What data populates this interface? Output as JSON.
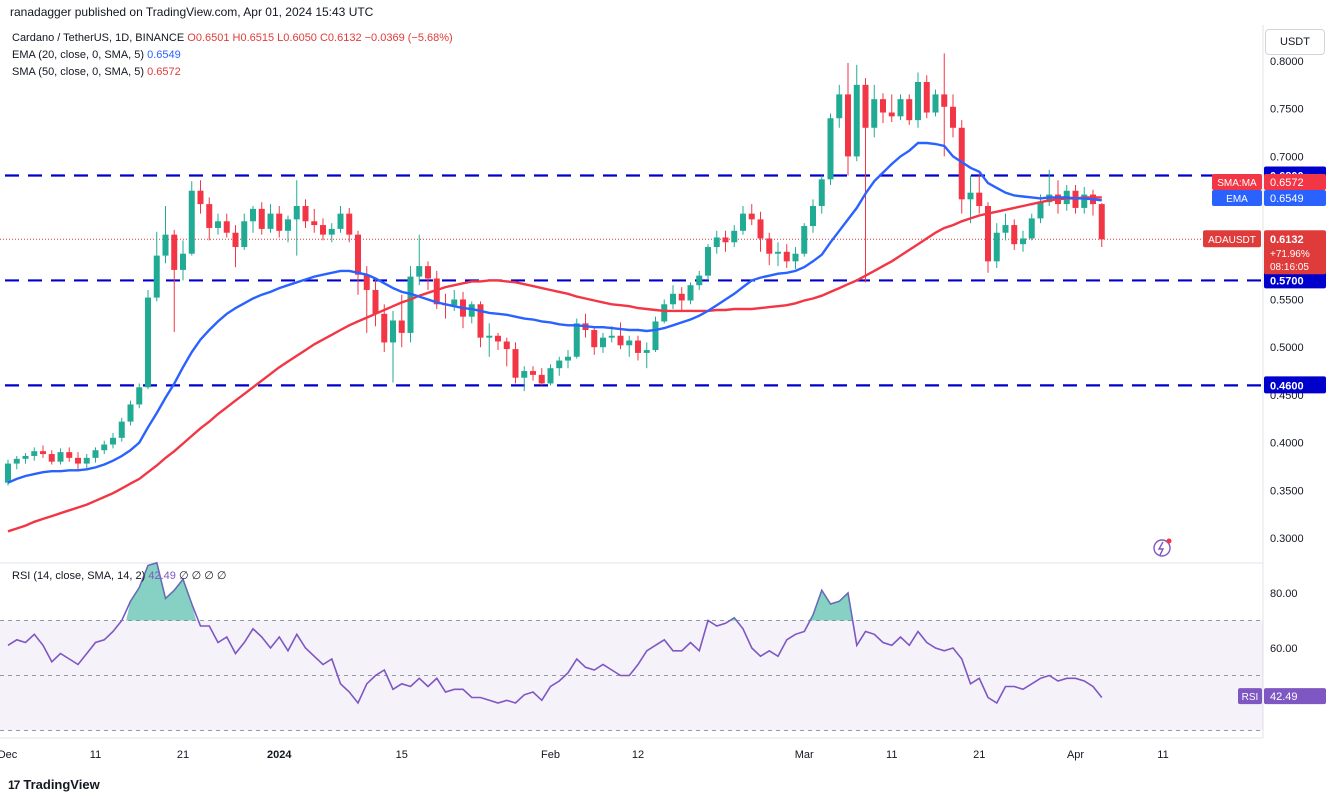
{
  "publisher": "ranadagger published on TradingView.com, Apr 01, 2024 15:43 UTC",
  "symbol_line": {
    "name": "Cardano / TetherUS, 1D, BINANCE",
    "ohlc": "O0.6501 H0.6515 L0.6050 C0.6132 −0.0369 (−5.68%)"
  },
  "ema_line": {
    "label": "EMA (20, close, 0, SMA, 5)",
    "value": "0.6549"
  },
  "sma_line": {
    "label": "SMA (50, close, 0, SMA, 5)",
    "value": "0.6572"
  },
  "currency": "USDT",
  "brand": {
    "mark": "17",
    "name": "TradingView"
  },
  "colors": {
    "up": "#22ab94",
    "down": "#f23645",
    "ema": "#2962ff",
    "sma": "#f23645",
    "level": "#0000cc",
    "rsi": "#7e57c2",
    "price_line": "#e03b3b"
  },
  "chart_data": [
    {
      "type": "candlestick",
      "title": "Cardano / TetherUS, 1D, BINANCE",
      "y_axis_ticks": [
        "0.8000",
        "0.7500",
        "0.7000",
        "0.5500",
        "0.5000",
        "0.4500",
        "0.4000",
        "0.3500",
        "0.3000"
      ],
      "ylim": [
        0.28,
        0.81
      ],
      "x_axis_ticks": [
        {
          "label": "Dec",
          "day": 0
        },
        {
          "label": "11",
          "day": 10
        },
        {
          "label": "21",
          "day": 20
        },
        {
          "label": "2024",
          "day": 31
        },
        {
          "label": "15",
          "day": 45
        },
        {
          "label": "Feb",
          "day": 62
        },
        {
          "label": "12",
          "day": 72
        },
        {
          "label": "Mar",
          "day": 91
        },
        {
          "label": "11",
          "day": 101
        },
        {
          "label": "21",
          "day": 111
        },
        {
          "label": "Apr",
          "day": 122
        },
        {
          "label": "11",
          "day": 132
        }
      ],
      "first_candle_date": "2023-11-22",
      "ohlc": [
        [
          0.358,
          0.382,
          0.355,
          0.378
        ],
        [
          0.378,
          0.386,
          0.372,
          0.383
        ],
        [
          0.383,
          0.389,
          0.378,
          0.386
        ],
        [
          0.386,
          0.395,
          0.381,
          0.391
        ],
        [
          0.391,
          0.397,
          0.384,
          0.388
        ],
        [
          0.388,
          0.392,
          0.377,
          0.38
        ],
        [
          0.38,
          0.394,
          0.377,
          0.39
        ],
        [
          0.39,
          0.395,
          0.38,
          0.384
        ],
        [
          0.384,
          0.39,
          0.372,
          0.378
        ],
        [
          0.378,
          0.388,
          0.373,
          0.384
        ],
        [
          0.384,
          0.395,
          0.379,
          0.392
        ],
        [
          0.392,
          0.402,
          0.388,
          0.398
        ],
        [
          0.398,
          0.41,
          0.394,
          0.405
        ],
        [
          0.405,
          0.426,
          0.401,
          0.422
        ],
        [
          0.422,
          0.444,
          0.418,
          0.44
        ],
        [
          0.44,
          0.462,
          0.436,
          0.458
        ],
        [
          0.458,
          0.56,
          0.456,
          0.552
        ],
        [
          0.552,
          0.621,
          0.548,
          0.596
        ],
        [
          0.596,
          0.648,
          0.588,
          0.618
        ],
        [
          0.618,
          0.623,
          0.516,
          0.581
        ],
        [
          0.581,
          0.612,
          0.57,
          0.598
        ],
        [
          0.598,
          0.674,
          0.596,
          0.664
        ],
        [
          0.664,
          0.675,
          0.64,
          0.65
        ],
        [
          0.65,
          0.657,
          0.612,
          0.625
        ],
        [
          0.625,
          0.64,
          0.618,
          0.632
        ],
        [
          0.632,
          0.64,
          0.615,
          0.62
        ],
        [
          0.62,
          0.628,
          0.584,
          0.605
        ],
        [
          0.605,
          0.64,
          0.602,
          0.632
        ],
        [
          0.632,
          0.648,
          0.62,
          0.645
        ],
        [
          0.645,
          0.652,
          0.618,
          0.624
        ],
        [
          0.624,
          0.65,
          0.62,
          0.64
        ],
        [
          0.64,
          0.648,
          0.615,
          0.622
        ],
        [
          0.622,
          0.638,
          0.61,
          0.634
        ],
        [
          0.634,
          0.675,
          0.596,
          0.648
        ],
        [
          0.648,
          0.655,
          0.625,
          0.632
        ],
        [
          0.632,
          0.645,
          0.62,
          0.628
        ],
        [
          0.628,
          0.635,
          0.612,
          0.618
        ],
        [
          0.618,
          0.63,
          0.61,
          0.624
        ],
        [
          0.624,
          0.648,
          0.62,
          0.64
        ],
        [
          0.64,
          0.646,
          0.61,
          0.618
        ],
        [
          0.618,
          0.622,
          0.555,
          0.576
        ],
        [
          0.576,
          0.585,
          0.515,
          0.56
        ],
        [
          0.56,
          0.572,
          0.522,
          0.535
        ],
        [
          0.535,
          0.545,
          0.495,
          0.505
        ],
        [
          0.505,
          0.538,
          0.463,
          0.528
        ],
        [
          0.528,
          0.555,
          0.5,
          0.515
        ],
        [
          0.515,
          0.585,
          0.505,
          0.574
        ],
        [
          0.574,
          0.618,
          0.565,
          0.585
        ],
        [
          0.585,
          0.59,
          0.56,
          0.572
        ],
        [
          0.572,
          0.58,
          0.54,
          0.545
        ],
        [
          0.545,
          0.556,
          0.53,
          0.544
        ],
        [
          0.544,
          0.56,
          0.538,
          0.55
        ],
        [
          0.55,
          0.558,
          0.52,
          0.532
        ],
        [
          0.532,
          0.548,
          0.525,
          0.545
        ],
        [
          0.545,
          0.548,
          0.5,
          0.51
        ],
        [
          0.51,
          0.525,
          0.49,
          0.512
        ],
        [
          0.512,
          0.515,
          0.497,
          0.506
        ],
        [
          0.506,
          0.51,
          0.48,
          0.498
        ],
        [
          0.498,
          0.505,
          0.462,
          0.468
        ],
        [
          0.468,
          0.48,
          0.454,
          0.475
        ],
        [
          0.475,
          0.48,
          0.465,
          0.471
        ],
        [
          0.471,
          0.478,
          0.46,
          0.462
        ],
        [
          0.462,
          0.482,
          0.46,
          0.478
        ],
        [
          0.478,
          0.49,
          0.47,
          0.486
        ],
        [
          0.486,
          0.497,
          0.478,
          0.49
        ],
        [
          0.49,
          0.53,
          0.488,
          0.525
        ],
        [
          0.525,
          0.535,
          0.51,
          0.518
        ],
        [
          0.518,
          0.522,
          0.492,
          0.5
        ],
        [
          0.5,
          0.515,
          0.494,
          0.51
        ],
        [
          0.51,
          0.522,
          0.505,
          0.512
        ],
        [
          0.512,
          0.526,
          0.498,
          0.502
        ],
        [
          0.502,
          0.512,
          0.49,
          0.507
        ],
        [
          0.507,
          0.512,
          0.486,
          0.494
        ],
        [
          0.494,
          0.505,
          0.478,
          0.497
        ],
        [
          0.497,
          0.532,
          0.495,
          0.527
        ],
        [
          0.527,
          0.55,
          0.525,
          0.545
        ],
        [
          0.545,
          0.565,
          0.54,
          0.556
        ],
        [
          0.556,
          0.563,
          0.538,
          0.549
        ],
        [
          0.549,
          0.568,
          0.545,
          0.565
        ],
        [
          0.565,
          0.58,
          0.56,
          0.575
        ],
        [
          0.575,
          0.608,
          0.57,
          0.605
        ],
        [
          0.605,
          0.622,
          0.598,
          0.615
        ],
        [
          0.615,
          0.622,
          0.6,
          0.61
        ],
        [
          0.61,
          0.628,
          0.605,
          0.622
        ],
        [
          0.622,
          0.648,
          0.618,
          0.64
        ],
        [
          0.64,
          0.65,
          0.628,
          0.634
        ],
        [
          0.634,
          0.642,
          0.6,
          0.614
        ],
        [
          0.614,
          0.62,
          0.586,
          0.598
        ],
        [
          0.598,
          0.61,
          0.585,
          0.6
        ],
        [
          0.6,
          0.608,
          0.583,
          0.59
        ],
        [
          0.59,
          0.605,
          0.582,
          0.598
        ],
        [
          0.598,
          0.63,
          0.595,
          0.627
        ],
        [
          0.627,
          0.655,
          0.62,
          0.648
        ],
        [
          0.648,
          0.68,
          0.64,
          0.676
        ],
        [
          0.676,
          0.745,
          0.67,
          0.74
        ],
        [
          0.74,
          0.775,
          0.73,
          0.765
        ],
        [
          0.765,
          0.798,
          0.68,
          0.7
        ],
        [
          0.7,
          0.796,
          0.695,
          0.775
        ],
        [
          0.775,
          0.782,
          0.568,
          0.73
        ],
        [
          0.73,
          0.775,
          0.72,
          0.76
        ],
        [
          0.76,
          0.766,
          0.735,
          0.746
        ],
        [
          0.746,
          0.765,
          0.736,
          0.742
        ],
        [
          0.742,
          0.765,
          0.738,
          0.76
        ],
        [
          0.76,
          0.765,
          0.733,
          0.738
        ],
        [
          0.738,
          0.788,
          0.73,
          0.778
        ],
        [
          0.778,
          0.785,
          0.74,
          0.746
        ],
        [
          0.746,
          0.77,
          0.742,
          0.765
        ],
        [
          0.765,
          0.808,
          0.7,
          0.752
        ],
        [
          0.752,
          0.765,
          0.72,
          0.73
        ],
        [
          0.73,
          0.738,
          0.64,
          0.655
        ],
        [
          0.655,
          0.68,
          0.63,
          0.662
        ],
        [
          0.662,
          0.682,
          0.64,
          0.648
        ],
        [
          0.648,
          0.652,
          0.578,
          0.59
        ],
        [
          0.59,
          0.63,
          0.583,
          0.62
        ],
        [
          0.62,
          0.64,
          0.612,
          0.628
        ],
        [
          0.628,
          0.634,
          0.602,
          0.608
        ],
        [
          0.608,
          0.622,
          0.6,
          0.614
        ],
        [
          0.614,
          0.64,
          0.612,
          0.635
        ],
        [
          0.635,
          0.66,
          0.63,
          0.652
        ],
        [
          0.652,
          0.686,
          0.648,
          0.66
        ],
        [
          0.66,
          0.675,
          0.64,
          0.65
        ],
        [
          0.65,
          0.67,
          0.643,
          0.664
        ],
        [
          0.664,
          0.67,
          0.64,
          0.646
        ],
        [
          0.646,
          0.668,
          0.64,
          0.66
        ],
        [
          0.66,
          0.665,
          0.638,
          0.65
        ],
        [
          0.65,
          0.651,
          0.605,
          0.613
        ]
      ],
      "ema20": [
        0.358,
        0.362,
        0.365,
        0.367,
        0.369,
        0.37,
        0.37,
        0.371,
        0.371,
        0.372,
        0.374,
        0.377,
        0.381,
        0.386,
        0.392,
        0.4,
        0.416,
        0.431,
        0.447,
        0.462,
        0.479,
        0.495,
        0.508,
        0.518,
        0.527,
        0.535,
        0.541,
        0.546,
        0.551,
        0.555,
        0.558,
        0.562,
        0.565,
        0.568,
        0.571,
        0.574,
        0.576,
        0.578,
        0.58,
        0.58,
        0.578,
        0.576,
        0.572,
        0.567,
        0.562,
        0.558,
        0.556,
        0.553,
        0.55,
        0.547,
        0.545,
        0.543,
        0.541,
        0.54,
        0.538,
        0.536,
        0.535,
        0.534,
        0.532,
        0.53,
        0.529,
        0.527,
        0.526,
        0.524,
        0.523,
        0.523,
        0.522,
        0.521,
        0.521,
        0.52,
        0.519,
        0.518,
        0.518,
        0.517,
        0.518,
        0.52,
        0.523,
        0.526,
        0.529,
        0.533,
        0.538,
        0.544,
        0.55,
        0.556,
        0.563,
        0.57,
        0.573,
        0.575,
        0.577,
        0.578,
        0.58,
        0.584,
        0.59,
        0.597,
        0.61,
        0.622,
        0.634,
        0.646,
        0.661,
        0.674,
        0.683,
        0.692,
        0.7,
        0.706,
        0.714,
        0.714,
        0.713,
        0.711,
        0.7,
        0.694,
        0.688,
        0.684,
        0.672,
        0.667,
        0.662,
        0.659,
        0.658,
        0.657,
        0.656,
        0.657,
        0.657,
        0.657,
        0.656,
        0.656,
        0.655,
        0.654
      ],
      "sma50": [
        0.307,
        0.31,
        0.313,
        0.317,
        0.32,
        0.323,
        0.326,
        0.329,
        0.332,
        0.335,
        0.339,
        0.343,
        0.347,
        0.352,
        0.357,
        0.362,
        0.369,
        0.376,
        0.384,
        0.391,
        0.399,
        0.407,
        0.415,
        0.422,
        0.43,
        0.437,
        0.444,
        0.451,
        0.458,
        0.465,
        0.472,
        0.479,
        0.485,
        0.491,
        0.497,
        0.503,
        0.508,
        0.513,
        0.518,
        0.523,
        0.527,
        0.531,
        0.535,
        0.539,
        0.543,
        0.547,
        0.55,
        0.554,
        0.557,
        0.56,
        0.563,
        0.565,
        0.567,
        0.569,
        0.569,
        0.57,
        0.57,
        0.569,
        0.568,
        0.566,
        0.564,
        0.562,
        0.56,
        0.558,
        0.556,
        0.553,
        0.551,
        0.549,
        0.547,
        0.545,
        0.544,
        0.543,
        0.541,
        0.54,
        0.539,
        0.538,
        0.538,
        0.538,
        0.538,
        0.538,
        0.538,
        0.539,
        0.539,
        0.54,
        0.54,
        0.54,
        0.541,
        0.542,
        0.543,
        0.544,
        0.546,
        0.549,
        0.551,
        0.554,
        0.558,
        0.562,
        0.566,
        0.57,
        0.575,
        0.58,
        0.585,
        0.59,
        0.596,
        0.602,
        0.608,
        0.614,
        0.62,
        0.625,
        0.628,
        0.632,
        0.635,
        0.638,
        0.64,
        0.642,
        0.644,
        0.646,
        0.648,
        0.65,
        0.652,
        0.654,
        0.655,
        0.656,
        0.656,
        0.657,
        0.657,
        0.657
      ],
      "horizontal_levels": [
        {
          "value": 0.68,
          "label": "0.6800"
        },
        {
          "value": 0.57,
          "label": "0.5700"
        },
        {
          "value": 0.46,
          "label": "0.4600"
        }
      ],
      "last_price": {
        "value": 0.6132,
        "label": "ADAUSDT",
        "price": "0.6132",
        "change": "+71.96%",
        "countdown": "08:16:05"
      },
      "sma_tag": {
        "value": 0.6572,
        "label": "SMA:MA",
        "price": "0.6572"
      },
      "ema_tag": {
        "value": 0.6549,
        "label": "EMA",
        "price": "0.6549"
      }
    },
    {
      "type": "line",
      "title": "RSI (14, close, SMA, 14, 2)",
      "legend": "RSI (14, close, SMA, 14, 2)",
      "legend_value": "42.49",
      "legend_extra": "∅ ∅ ∅ ∅",
      "y_axis_ticks": [
        "80.00",
        "60.00"
      ],
      "ylim": [
        30,
        93
      ],
      "bands": {
        "upper": 70,
        "middle": 50,
        "lower": 30
      },
      "values": [
        61,
        63,
        62,
        65,
        61,
        55,
        58,
        56,
        54,
        58,
        62,
        63,
        66,
        70,
        77,
        82,
        90,
        91,
        78,
        81,
        85,
        76,
        68,
        68,
        62,
        64,
        58,
        62,
        67,
        64,
        60,
        64,
        59,
        65,
        60,
        57,
        54,
        56,
        47,
        44,
        40,
        47,
        50,
        52,
        45,
        47,
        46,
        49,
        46,
        49,
        44,
        45,
        45,
        42,
        42,
        41,
        40,
        41,
        40,
        43,
        44,
        41,
        46,
        48,
        51,
        56,
        53,
        52,
        54,
        52,
        50,
        50,
        54,
        59,
        61,
        63,
        59,
        59,
        62,
        59,
        70,
        68,
        69,
        71,
        67,
        60,
        57,
        59,
        57,
        63,
        65,
        66,
        72,
        81,
        76,
        77,
        80,
        61,
        66,
        65,
        62,
        61,
        64,
        61,
        66,
        62,
        60,
        59,
        60,
        56,
        47,
        49,
        42,
        40,
        46,
        46,
        45,
        47,
        49,
        50,
        48,
        49,
        49,
        48,
        46,
        42
      ],
      "last": {
        "label": "RSI",
        "value": "42.49"
      }
    }
  ]
}
